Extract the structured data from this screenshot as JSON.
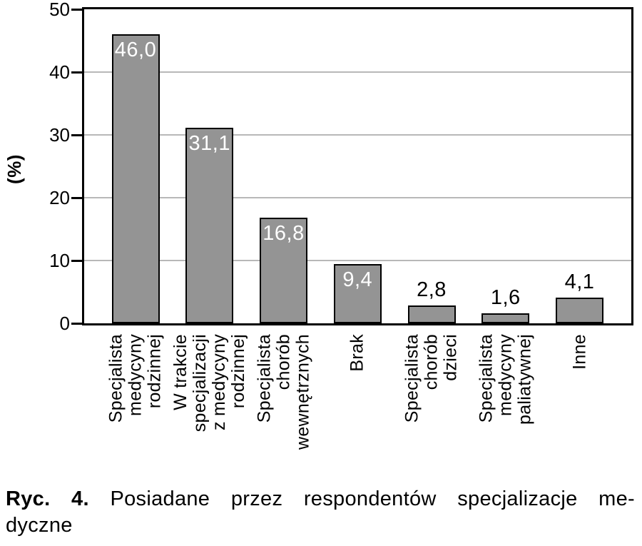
{
  "figure": {
    "caption_prefix": "Ryc. 4.",
    "caption_line1_rest": "Posiadane przez respondentów specjalizacje me-",
    "caption_line2": "dyczne"
  },
  "chart_data": {
    "type": "bar",
    "title": "",
    "xlabel": "",
    "ylabel": "(%)",
    "ylim": [
      0,
      50
    ],
    "yticks": [
      0,
      10,
      20,
      30,
      40,
      50
    ],
    "grid": "horizontal-gridlines-on",
    "legend": "none",
    "bar_color": "#949494",
    "bar_border_color": "#000000",
    "gridline_color": "#b8b8b8",
    "value_label_inside_color": "#ffffff",
    "value_label_outside_color": "#000000",
    "categories": [
      "Specjalista medycyny rodzinnej",
      "W trakcie specjalizacji z medycyny rodzinnej",
      "Specjalista chorób wewnętrznych",
      "Brak",
      "Specjalista chorób dzieci",
      "Specjalista medycyny paliatywnej",
      "Inne"
    ],
    "category_lines": [
      [
        "Specjalista",
        "medycyny",
        "rodzinnej"
      ],
      [
        "W trakcie",
        "specjalizacji",
        "z medycyny",
        "rodzinnej"
      ],
      [
        "Specjalista",
        "chorób",
        "wewnętrznych"
      ],
      [
        "Brak"
      ],
      [
        "Specjalista",
        "chorób",
        "dzieci"
      ],
      [
        "Specjalista",
        "medycyny",
        "paliatywnej"
      ],
      [
        "Inne"
      ]
    ],
    "values": [
      46.0,
      31.1,
      16.8,
      9.4,
      2.8,
      1.6,
      4.1
    ],
    "value_labels": [
      "46,0",
      "31,1",
      "16,8",
      "9,4",
      "2,8",
      "1,6",
      "4,1"
    ]
  }
}
